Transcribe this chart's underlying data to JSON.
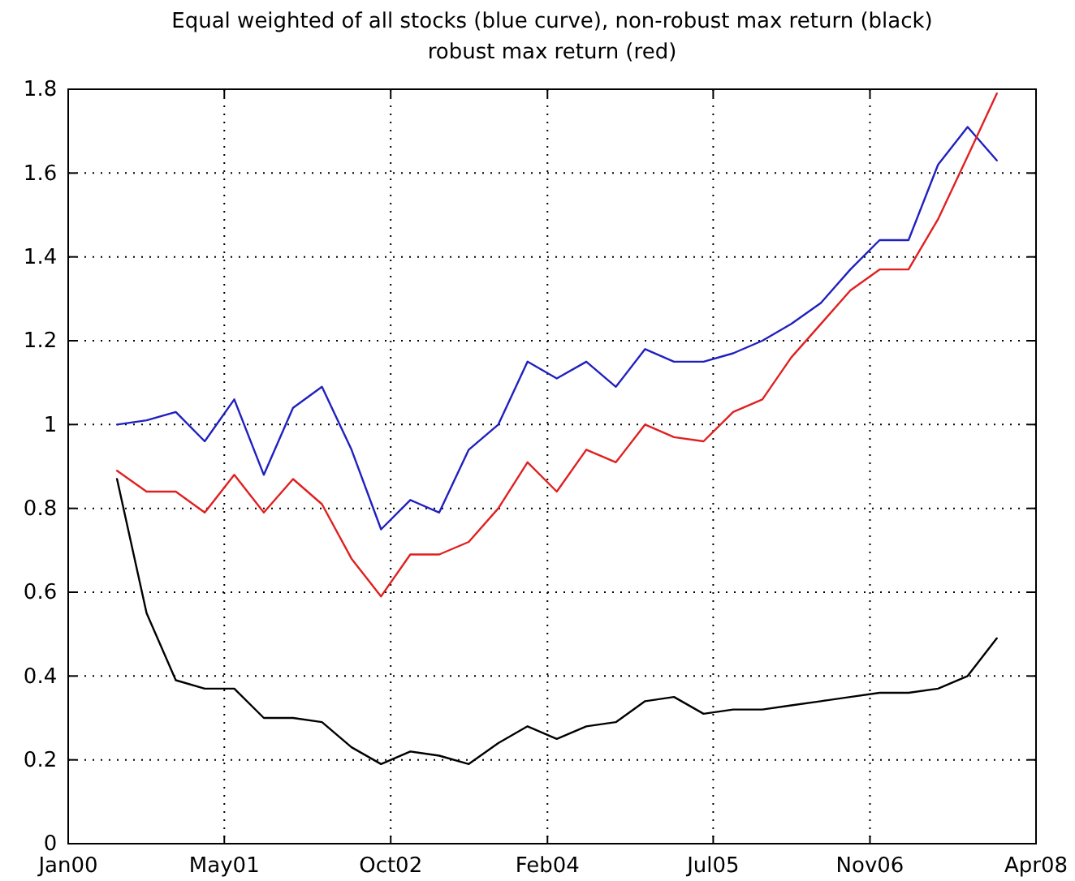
{
  "chart_data": {
    "type": "line",
    "title": "Equal weighted of all stocks (blue curve), non-robust max return (black)\nrobust max return (red)",
    "x": [
      "2000-06",
      "2000-09",
      "2000-12",
      "2001-03",
      "2001-06",
      "2001-09",
      "2001-12",
      "2002-03",
      "2002-06",
      "2002-09",
      "2002-12",
      "2003-03",
      "2003-06",
      "2003-09",
      "2003-12",
      "2004-03",
      "2004-06",
      "2004-09",
      "2004-12",
      "2005-03",
      "2005-06",
      "2005-09",
      "2005-12",
      "2006-03",
      "2006-06",
      "2006-09",
      "2006-12",
      "2007-03",
      "2007-06",
      "2007-09",
      "2007-12"
    ],
    "series": [
      {
        "color": "#2020c0",
        "values": [
          1.0,
          1.01,
          1.03,
          0.96,
          1.06,
          0.88,
          1.04,
          1.09,
          0.94,
          0.75,
          0.82,
          0.79,
          0.94,
          1.0,
          1.15,
          1.11,
          1.15,
          1.09,
          1.18,
          1.15,
          1.15,
          1.17,
          1.2,
          1.24,
          1.29,
          1.37,
          1.44,
          1.44,
          1.62,
          1.71,
          1.63
        ]
      },
      {
        "color": "#000000",
        "values": [
          0.87,
          0.55,
          0.39,
          0.37,
          0.37,
          0.3,
          0.3,
          0.29,
          0.23,
          0.19,
          0.22,
          0.21,
          0.19,
          0.24,
          0.28,
          0.25,
          0.28,
          0.29,
          0.34,
          0.35,
          0.31,
          0.32,
          0.32,
          0.33,
          0.34,
          0.35,
          0.36,
          0.36,
          0.37,
          0.4,
          0.49
        ]
      },
      {
        "color": "#e02020",
        "values": [
          0.89,
          0.84,
          0.84,
          0.79,
          0.88,
          0.79,
          0.87,
          0.81,
          0.68,
          0.59,
          0.69,
          0.69,
          0.72,
          0.8,
          0.91,
          0.84,
          0.94,
          0.91,
          1.0,
          0.97,
          0.96,
          1.03,
          1.06,
          1.16,
          1.24,
          1.32,
          1.37,
          1.37,
          1.49,
          1.64,
          1.79
        ]
      }
    ],
    "xlim": [
      "2000-01",
      "2008-04"
    ],
    "xticks": [
      {
        "value": "2000-01",
        "label": "Jan00"
      },
      {
        "value": "2001-05",
        "label": "May01"
      },
      {
        "value": "2002-10",
        "label": "Oct02"
      },
      {
        "value": "2004-02",
        "label": "Feb04"
      },
      {
        "value": "2005-07",
        "label": "Jul05"
      },
      {
        "value": "2006-11",
        "label": "Nov06"
      },
      {
        "value": "2008-04",
        "label": "Apr08"
      }
    ],
    "ylim": [
      0,
      1.8
    ],
    "yticks": [
      0,
      0.2,
      0.4,
      0.6,
      0.8,
      1,
      1.2,
      1.4,
      1.6,
      1.8
    ],
    "grid": true,
    "marker": "none",
    "line_style": "solid"
  }
}
